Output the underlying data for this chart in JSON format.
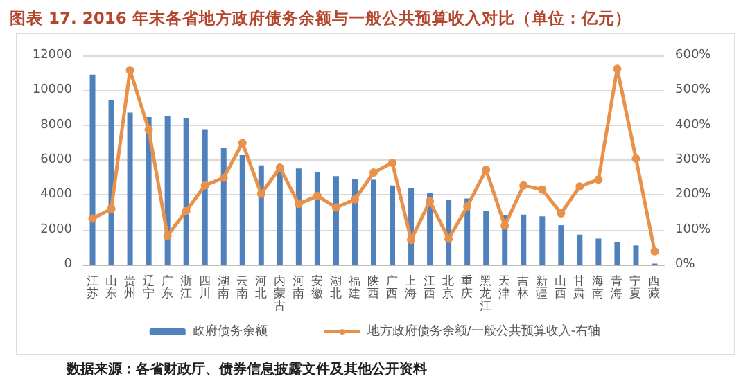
{
  "chart_data": {
    "type": "bar",
    "title": "图表 17. 2016 年末各省地方政府债务余额与一般公共预算收入对比（单位：亿元）",
    "categories": [
      "江苏",
      "山东",
      "贵州",
      "辽宁",
      "广东",
      "浙江",
      "四川",
      "湖南",
      "云南",
      "河北",
      "内蒙古",
      "河南",
      "安徽",
      "湖北",
      "福建",
      "陕西",
      "广西",
      "上海",
      "江西",
      "北京",
      "重庆",
      "黑龙江",
      "天津",
      "吉林",
      "新疆",
      "山西",
      "甘肃",
      "海南",
      "青海",
      "宁夏",
      "西藏"
    ],
    "series": [
      {
        "name": "政府债务余额",
        "color": "#4f81bd",
        "values": [
          10900,
          9440,
          8720,
          8460,
          8510,
          8380,
          7770,
          6720,
          6280,
          5690,
          5400,
          5510,
          5300,
          5080,
          4920,
          4870,
          4540,
          4410,
          4100,
          3720,
          3790,
          3080,
          2820,
          2870,
          2770,
          2260,
          1720,
          1490,
          1280,
          1100,
          60
        ]
      },
      {
        "name": "地方政府债务余额/一般公共预算收入-右轴",
        "type": "line",
        "axis": "y2",
        "color": "#e8914a",
        "values": [
          132,
          160,
          558,
          387,
          83,
          154,
          227,
          249,
          349,
          203,
          278,
          174,
          197,
          164,
          187,
          264,
          292,
          71,
          182,
          74,
          167,
          272,
          112,
          227,
          215,
          147,
          224,
          244,
          562,
          304,
          38
        ]
      }
    ],
    "ylim": [
      0,
      12000
    ],
    "yticks": [
      0,
      2000,
      4000,
      6000,
      8000,
      10000,
      12000
    ],
    "y2lim": [
      0,
      600
    ],
    "y2ticks": [
      {
        "value": 0,
        "label": "0%"
      },
      {
        "value": 100,
        "label": "100%"
      },
      {
        "value": 200,
        "label": "200%"
      },
      {
        "value": 300,
        "label": "300%"
      },
      {
        "value": 400,
        "label": "400%"
      },
      {
        "value": 500,
        "label": "500%"
      },
      {
        "value": 600,
        "label": "600%"
      }
    ],
    "grid": "y",
    "legend": "bottom",
    "marker": "circle",
    "line_style": "solid",
    "annotations": [
      "数据来源：各省财政厅、债券信息披露文件及其他公开资料"
    ]
  }
}
